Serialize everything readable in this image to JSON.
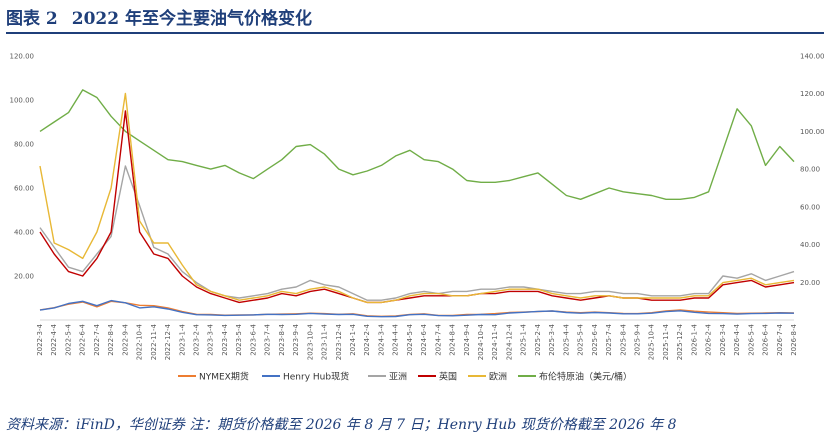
{
  "header": {
    "fig_num": "图表 2",
    "title": "2022 年至今主要油气价格变化"
  },
  "footer": {
    "source": "资料来源：iFinD，华创证券 注：期货价格截至 2026 年 8 月 7 日；Henry Hub 现货价格截至 2026 年 8"
  },
  "chart_data": {
    "type": "line",
    "title": "",
    "x_labels": [
      "2022-3-4",
      "2022-4-4",
      "2022-5-4",
      "2022-6-4",
      "2022-7-4",
      "2022-8-4",
      "2022-9-4",
      "2022-10-4",
      "2022-11-4",
      "2022-12-4",
      "2023-1-4",
      "2023-2-4",
      "2023-3-4",
      "2023-4-4",
      "2023-5-4",
      "2023-6-4",
      "2023-7-4",
      "2023-8-4",
      "2023-9-4",
      "2023-10-4",
      "2023-11-4",
      "2023-12-4",
      "2024-1-4",
      "2024-2-4",
      "2024-3-4",
      "2024-4-4",
      "2024-5-4",
      "2024-6-4",
      "2024-7-4",
      "2024-8-4",
      "2024-9-4",
      "2024-10-4",
      "2024-11-4",
      "2024-12-4",
      "2025-1-4",
      "2025-2-4",
      "2025-3-4",
      "2025-4-4",
      "2025-5-4",
      "2025-6-4",
      "2025-7-4",
      "2025-8-4",
      "2025-9-4",
      "2025-10-4",
      "2025-11-4",
      "2025-12-4",
      "2026-1-4",
      "2026-2-4",
      "2026-3-4",
      "2026-4-4",
      "2026-5-4",
      "2026-6-4",
      "2026-7-4",
      "2026-8-4"
    ],
    "y_left": {
      "min": 0,
      "max": 120,
      "ticks": [
        "",
        "20.00",
        "40.00",
        "60.00",
        "80.00",
        "100.00",
        "120.00"
      ]
    },
    "y_right": {
      "min": 0,
      "max": 140,
      "ticks": [
        "",
        "20.00",
        "40.00",
        "60.00",
        "80.00",
        "100.00",
        "120.00",
        "140.00"
      ]
    },
    "grid": false,
    "legend_position": "bottom",
    "series": [
      {
        "name": "NYMEX期货",
        "axis": "left",
        "color": "#ed7d31",
        "values": [
          4.6,
          5.6,
          7.2,
          8.2,
          6.0,
          8.5,
          7.8,
          6.7,
          6.5,
          5.5,
          3.8,
          2.6,
          2.5,
          2.2,
          2.3,
          2.3,
          2.6,
          2.7,
          2.8,
          3.1,
          2.9,
          2.6,
          2.8,
          1.9,
          1.7,
          1.8,
          2.5,
          2.8,
          2.1,
          2.1,
          2.5,
          2.6,
          2.9,
          3.4,
          3.6,
          3.8,
          4.1,
          3.6,
          3.3,
          3.6,
          3.3,
          3.0,
          2.9,
          3.3,
          4.1,
          4.6,
          4.0,
          3.6,
          3.3,
          3.0,
          3.1,
          3.2,
          3.3,
          3.2
        ]
      },
      {
        "name": "Henry Hub现货",
        "axis": "left",
        "color": "#4472c4",
        "values": [
          4.5,
          5.5,
          7.5,
          8.5,
          6.5,
          8.8,
          7.8,
          5.5,
          6.0,
          5.0,
          3.5,
          2.4,
          2.3,
          2.1,
          2.2,
          2.3,
          2.6,
          2.5,
          2.6,
          3.0,
          2.7,
          2.5,
          2.6,
          1.7,
          1.5,
          1.6,
          2.4,
          2.6,
          2.0,
          1.9,
          2.2,
          2.5,
          2.4,
          3.2,
          3.5,
          3.9,
          4.1,
          3.4,
          3.1,
          3.4,
          3.2,
          2.8,
          2.8,
          3.1,
          3.8,
          4.2,
          3.5,
          3.0,
          2.9,
          2.7,
          2.9,
          3.0,
          3.2,
          3.1
        ]
      },
      {
        "name": "亚洲",
        "axis": "left",
        "color": "#a5a5a5",
        "values": [
          42,
          33,
          24,
          22,
          30,
          38,
          70,
          52,
          33,
          30,
          22,
          17,
          13,
          11,
          10,
          11,
          12,
          14,
          15,
          18,
          16,
          15,
          12,
          9,
          9,
          10,
          12,
          13,
          12,
          13,
          13,
          14,
          14,
          15,
          15,
          14,
          13,
          12,
          12,
          13,
          13,
          12,
          12,
          11,
          11,
          11,
          12,
          12,
          20,
          19,
          21,
          18,
          20,
          22
        ]
      },
      {
        "name": "英国",
        "axis": "left",
        "color": "#c00000",
        "values": [
          40,
          30,
          22,
          20,
          28,
          40,
          95,
          40,
          30,
          28,
          20,
          15,
          12,
          10,
          8,
          9,
          10,
          12,
          11,
          13,
          14,
          12,
          10,
          8,
          8,
          9,
          10,
          11,
          11,
          11,
          11,
          12,
          12,
          13,
          13,
          13,
          11,
          10,
          9,
          10,
          11,
          10,
          10,
          9,
          9,
          9,
          10,
          10,
          16,
          17,
          18,
          15,
          16,
          17
        ]
      },
      {
        "name": "欧洲",
        "axis": "left",
        "color": "#e8b836",
        "values": [
          70,
          35,
          32,
          28,
          40,
          60,
          103,
          45,
          35,
          35,
          25,
          16,
          13,
          11,
          9,
          10,
          11,
          13,
          12,
          14,
          15,
          13,
          10,
          8,
          8,
          9,
          11,
          12,
          12,
          11,
          11,
          12,
          13,
          14,
          14,
          14,
          12,
          11,
          10,
          11,
          11,
          10,
          10,
          10,
          10,
          10,
          11,
          11,
          17,
          18,
          19,
          16,
          17,
          18
        ]
      },
      {
        "name": "布伦特原油（美元/桶）",
        "axis": "right",
        "color": "#70ad47",
        "values": [
          100,
          105,
          110,
          122,
          118,
          108,
          100,
          95,
          90,
          85,
          84,
          82,
          80,
          82,
          78,
          75,
          80,
          85,
          92,
          93,
          88,
          80,
          77,
          79,
          82,
          87,
          90,
          85,
          84,
          80,
          74,
          73,
          73,
          74,
          76,
          78,
          72,
          66,
          64,
          67,
          70,
          68,
          67,
          66,
          64,
          64,
          65,
          68,
          90,
          112,
          103,
          82,
          92,
          84
        ]
      }
    ]
  }
}
